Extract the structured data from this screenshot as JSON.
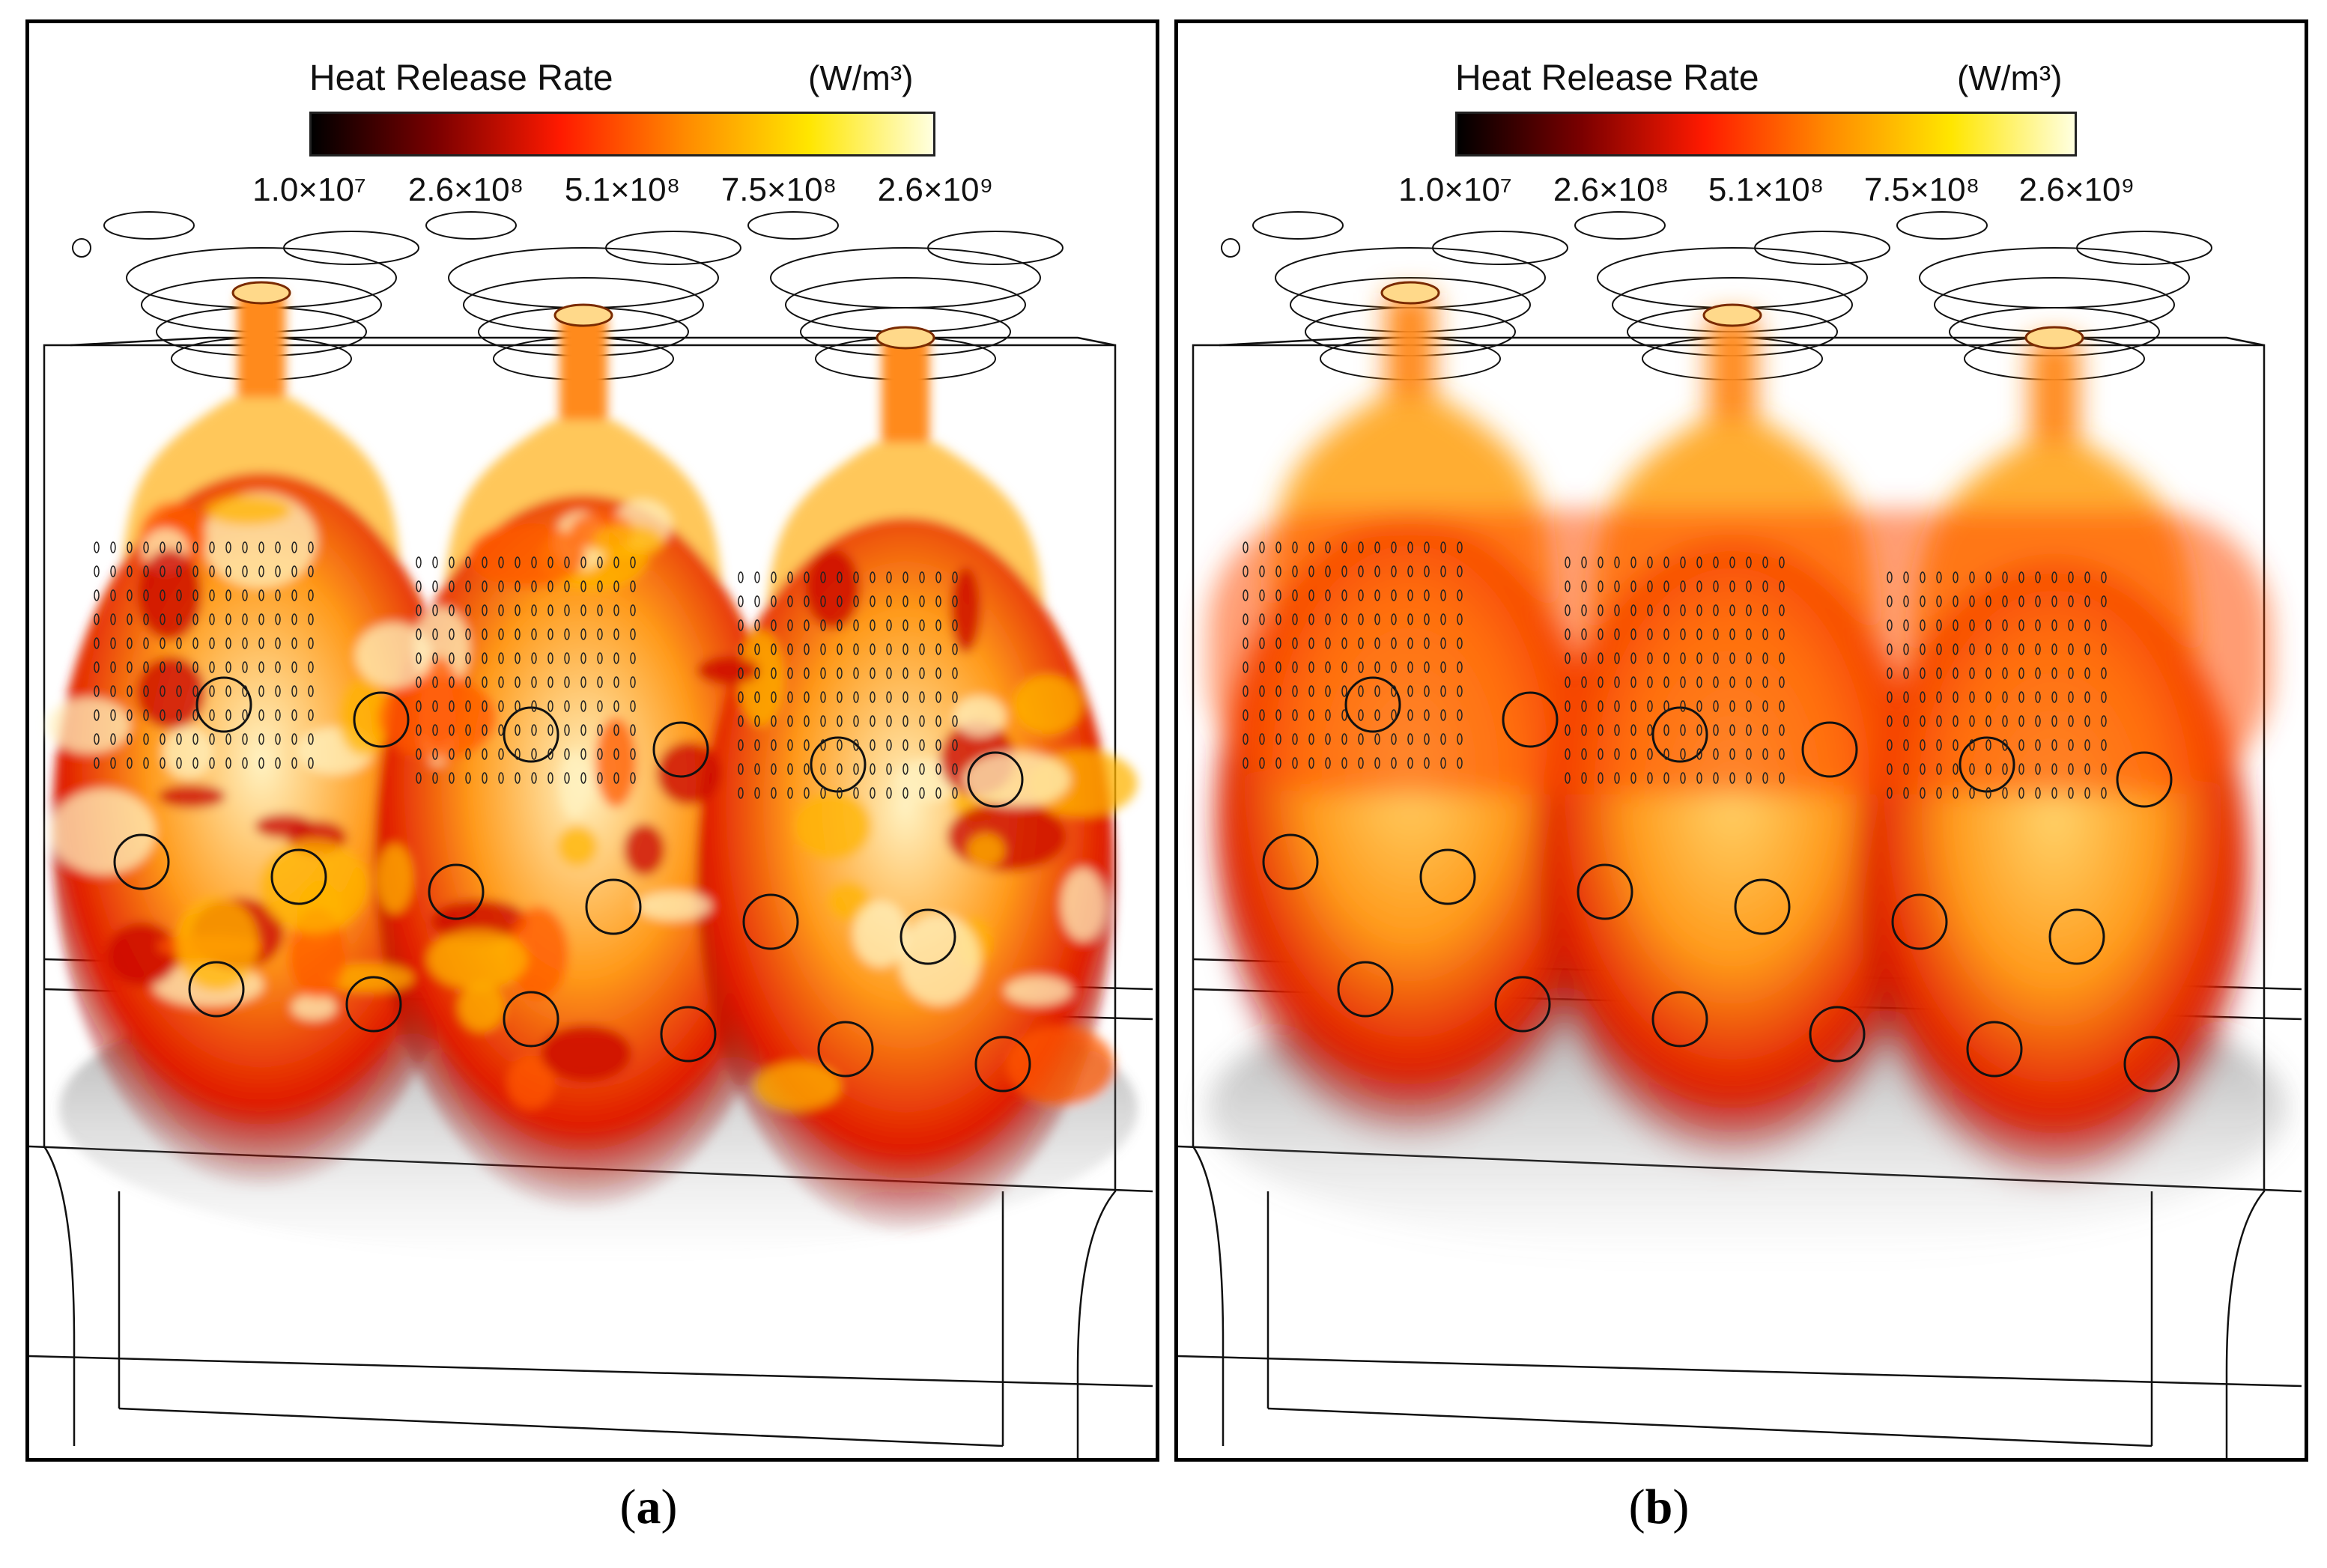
{
  "legend": {
    "title": "Heat Release Rate",
    "unit": "(W/m³)",
    "colors": [
      "#000000",
      "#7a0000",
      "#ff1a00",
      "#ff8a00",
      "#ffe600",
      "#ffffe0"
    ],
    "ticks": [
      "1.0×10⁷",
      "2.6×10⁸",
      "5.1×10⁸",
      "7.5×10⁸",
      "2.6×10⁹"
    ]
  },
  "panels": [
    {
      "id": "a",
      "caption_open": "(",
      "caption_letter": "a",
      "caption_close": ")",
      "style": "turbulent"
    },
    {
      "id": "b",
      "caption_open": "(",
      "caption_letter": "b",
      "caption_close": ")",
      "style": "smooth"
    }
  ]
}
